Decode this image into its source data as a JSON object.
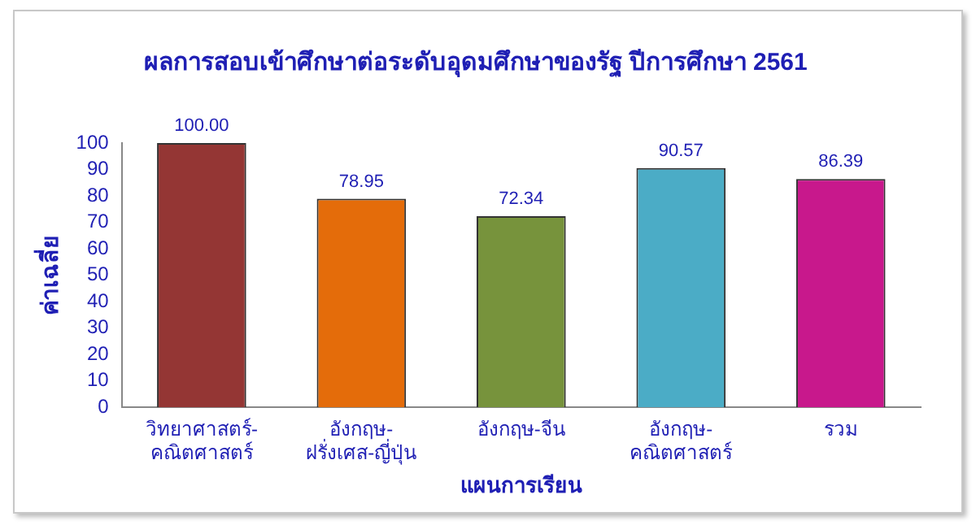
{
  "chart_data": {
    "type": "bar",
    "title": "ผลการสอบเข้าศึกษาต่อระดับอุดมศึกษาของรัฐ ปีการศึกษา 2561",
    "xlabel": "แผนการเรียน",
    "ylabel": "ค่าเฉลี่ย",
    "categories": [
      "วิทยาศาสตร์-คณิตศาสตร์",
      "อังกฤษ-ฝรั่งเศส-ญี่ปุ่น",
      "อังกฤษ-จีน",
      "อังกฤษ-คณิตศาสตร์",
      "รวม"
    ],
    "values": [
      100.0,
      78.95,
      72.34,
      90.57,
      86.39
    ],
    "value_labels": [
      "100.00",
      "78.95",
      "72.34",
      "90.57",
      "86.39"
    ],
    "colors": [
      "#943634",
      "#e46c0a",
      "#77933c",
      "#4bacc6",
      "#c8188c"
    ],
    "ylim": [
      0,
      100
    ],
    "yticks": [
      0,
      10,
      20,
      30,
      40,
      50,
      60,
      70,
      80,
      90,
      100
    ],
    "grid": false,
    "legend": false
  }
}
